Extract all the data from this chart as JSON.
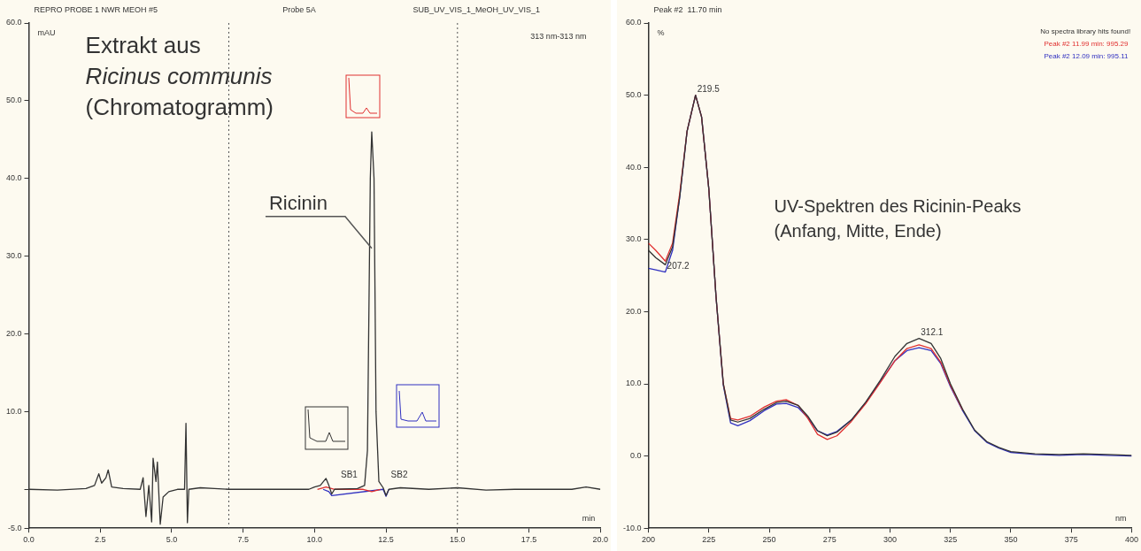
{
  "chart_data": [
    {
      "type": "line",
      "title": "REPRO PROBE 1 NWR MEOH #5",
      "ylabel": "mAU",
      "xlabel": "min",
      "xlim": [
        0,
        20
      ],
      "xticks": [
        {
          "value": 0,
          "label": "0.0"
        },
        2.5,
        {
          "value": 5,
          "label": "5.0"
        },
        7.5,
        {
          "value": 10,
          "label": "10.0"
        },
        12.5,
        {
          "value": 15,
          "label": "15.0"
        },
        17.5,
        {
          "value": 20,
          "label": "20.0"
        }
      ],
      "ylim": [
        -5,
        60
      ],
      "yticks": [
        {
          "value": -5,
          "label": "-5.0"
        },
        {
          "value": 0,
          "label": null
        },
        {
          "value": 10,
          "label": "10.0"
        },
        {
          "value": 20,
          "label": "20.0"
        },
        {
          "value": 30,
          "label": "30.0"
        },
        {
          "value": 40,
          "label": "40.0"
        },
        {
          "value": 50,
          "label": "50.0"
        },
        {
          "value": 60,
          "label": "60.0"
        }
      ],
      "grid": false,
      "legend": false,
      "marker": "none",
      "line_style": "solid",
      "series": [
        {
          "color": "#333333",
          "x": [
            0,
            1,
            2,
            2.3,
            2.45,
            2.55,
            2.7,
            2.78,
            2.9,
            3.3,
            3.9,
            4.0,
            4.1,
            4.2,
            4.3,
            4.35,
            4.45,
            4.5,
            4.6,
            4.7,
            4.9,
            5.2,
            5.45,
            5.5,
            5.55,
            5.6,
            6,
            6.5,
            7,
            8,
            9,
            9.8,
            10,
            10.2,
            10.4,
            10.5,
            10.6,
            10.7,
            11.5,
            11.75,
            11.85,
            11.95,
            12,
            12.08,
            12.15,
            12.25,
            12.4,
            12.5,
            12.6,
            13,
            14,
            15,
            16,
            17,
            18,
            19,
            19.5,
            20
          ],
          "values": [
            0,
            -0.1,
            0.1,
            0.5,
            2,
            0.8,
            1.5,
            2.5,
            0.3,
            0.1,
            0,
            1.5,
            -3.5,
            0.5,
            -4.2,
            4,
            1,
            3.5,
            -4.5,
            -1,
            -0.3,
            0,
            0,
            8.5,
            -4.3,
            0,
            0.2,
            0.1,
            0,
            0,
            0,
            0,
            0.3,
            0.5,
            1.4,
            0.5,
            -0.6,
            0,
            0.1,
            0.5,
            5,
            40,
            46,
            40,
            10,
            1,
            0.2,
            -0.8,
            0,
            0.2,
            0,
            0.2,
            -0.1,
            0,
            0,
            0,
            0.3,
            0
          ]
        },
        {
          "color": "#e03030",
          "x": [
            10.1,
            10.4,
            10.7,
            11.7,
            12.0,
            12.3
          ],
          "values": [
            0,
            0.3,
            0,
            0,
            -0.3,
            0
          ]
        },
        {
          "color": "#3030c0",
          "x": [
            10.3,
            10.5,
            10.6,
            12.4,
            12.5,
            12.6
          ],
          "values": [
            0,
            -0.3,
            -0.8,
            0,
            -0.9,
            0
          ]
        }
      ],
      "ref_lines": [
        {
          "axis": "x",
          "value": 7,
          "line_style": "dotted",
          "color": "#555555"
        },
        {
          "axis": "x",
          "value": 15,
          "line_style": "dotted",
          "color": "#555555"
        }
      ],
      "annotations": [
        "Probe 5A",
        "SUB_UV_VIS_1_MeOH_UV_VIS_1",
        "313 nm-313 nm",
        "Extrakt aus",
        "Ricinus communis",
        "(Chromatogramm)",
        {
          "text": "Ricinin",
          "x": 12,
          "y": 31
        },
        "SB1",
        "SB2"
      ]
    },
    {
      "type": "line",
      "title": "Peak #2  11.70 min",
      "ylabel": "%",
      "xlabel": "nm",
      "xlim": [
        200,
        400
      ],
      "xticks": [
        200,
        225,
        250,
        275,
        300,
        325,
        350,
        375,
        400
      ],
      "ylim": [
        -10,
        60
      ],
      "yticks": [
        {
          "value": -10,
          "label": "-10.0"
        },
        {
          "value": 0,
          "label": "0.0"
        },
        {
          "value": 10,
          "label": "10.0"
        },
        {
          "value": 20,
          "label": "20.0"
        },
        {
          "value": 30,
          "label": "30.0"
        },
        {
          "value": 40,
          "label": "40.0"
        },
        {
          "value": 50,
          "label": "50.0"
        },
        {
          "value": 60,
          "label": "60.0"
        }
      ],
      "grid": false,
      "legend": "top right",
      "marker": "none",
      "line_style": "solid",
      "series": [
        {
          "color": "#333333",
          "x": [
            200,
            203,
            207,
            210,
            213,
            216,
            219.5,
            222,
            225,
            228,
            231,
            234,
            237,
            242,
            248,
            253,
            257,
            262,
            266,
            270,
            274,
            278,
            284,
            290,
            296,
            302,
            307,
            312,
            317,
            321,
            325,
            330,
            335,
            340,
            345,
            350,
            360,
            370,
            380,
            390,
            400
          ],
          "values": [
            28.5,
            27.5,
            26.5,
            29,
            36,
            45,
            50,
            47,
            37,
            22,
            10,
            5,
            4.7,
            5.2,
            6.5,
            7.4,
            7.6,
            7,
            5.5,
            3.5,
            2.8,
            3.3,
            5,
            7.5,
            10.5,
            13.8,
            15.6,
            16.3,
            15.6,
            13.5,
            10,
            6.5,
            3.6,
            2,
            1.2,
            0.6,
            0.3,
            0.2,
            0.3,
            0.2,
            0.1
          ]
        },
        {
          "name": "Peak #2 11.99 min: 995.29",
          "color": "#e03030",
          "x": [
            200,
            203,
            207,
            210,
            213,
            216,
            219.5,
            222,
            225,
            228,
            231,
            234,
            237,
            242,
            248,
            253,
            257,
            262,
            266,
            270,
            274,
            278,
            284,
            290,
            296,
            302,
            307,
            312,
            317,
            321,
            325,
            330
          ],
          "values": [
            29.5,
            28.5,
            27,
            29.5,
            36.5,
            45,
            50,
            47,
            37,
            22,
            10,
            5.2,
            5,
            5.5,
            6.8,
            7.6,
            7.8,
            7,
            5.2,
            3,
            2.3,
            2.8,
            4.8,
            7.3,
            10.2,
            13.2,
            14.9,
            15.4,
            14.9,
            13,
            9.8,
            6.4
          ]
        },
        {
          "name": "Peak #2 12.09 min: 995.11",
          "color": "#3030c0",
          "x": [
            200,
            203,
            207,
            210,
            213,
            216,
            219.5,
            222,
            225,
            228,
            231,
            234,
            237,
            242,
            248,
            253,
            257,
            262,
            266,
            270,
            274,
            278,
            284,
            290,
            296,
            302,
            307,
            312,
            317,
            321,
            325,
            330,
            335,
            340,
            345,
            350,
            360,
            370,
            380,
            390,
            400
          ],
          "values": [
            26,
            25.8,
            25.5,
            28.5,
            36,
            45,
            50,
            47,
            37,
            22,
            9.8,
            4.6,
            4.2,
            4.9,
            6.3,
            7.2,
            7.3,
            6.7,
            5.3,
            3.5,
            2.9,
            3.4,
            5,
            7.4,
            10.3,
            13.2,
            14.6,
            15,
            14.6,
            12.8,
            9.6,
            6.3,
            3.5,
            1.9,
            1.1,
            0.5,
            0.2,
            0.1,
            0.2,
            0.1,
            0
          ]
        }
      ],
      "annotations": [
        "No spectra library hits found!",
        "UV-Spektren des Ricinin-Peaks",
        "(Anfang, Mitte, Ende)",
        {
          "text": "219.5",
          "x": 219.5,
          "y": 50
        },
        {
          "text": "207.2",
          "x": 207,
          "y": 25.5
        },
        {
          "text": "312.1",
          "x": 312,
          "y": 16.3
        }
      ]
    }
  ]
}
